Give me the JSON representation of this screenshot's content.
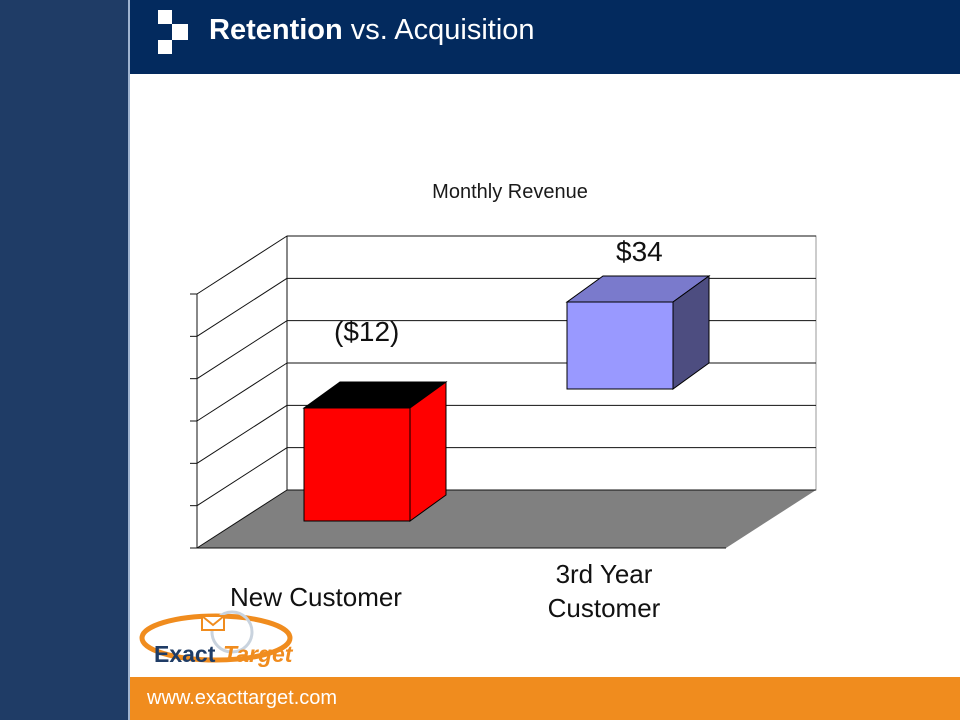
{
  "header": {
    "title_bold": "Retention",
    "title_rest": " vs. Acquisition"
  },
  "footer": {
    "url": "www.exacttarget.com"
  },
  "brand": {
    "name_part1": "Exact",
    "name_part2": "Target"
  },
  "colors": {
    "header_bg": "#032a5e",
    "footer_bg": "#f08c1e",
    "new_customer_bar": "#ff0000",
    "third_year_bar": "#9999ff"
  },
  "chart_data": {
    "type": "bar",
    "title": "Monthly Revenue",
    "categories": [
      "New Customer",
      "3rd Year Customer"
    ],
    "category_lines": [
      [
        "New Customer"
      ],
      [
        "3rd Year",
        "Customer"
      ]
    ],
    "values": [
      -12,
      34
    ],
    "data_labels": [
      "($12)",
      "$34"
    ],
    "ylim": [
      -20,
      40
    ],
    "grid": true,
    "legend": "none"
  }
}
